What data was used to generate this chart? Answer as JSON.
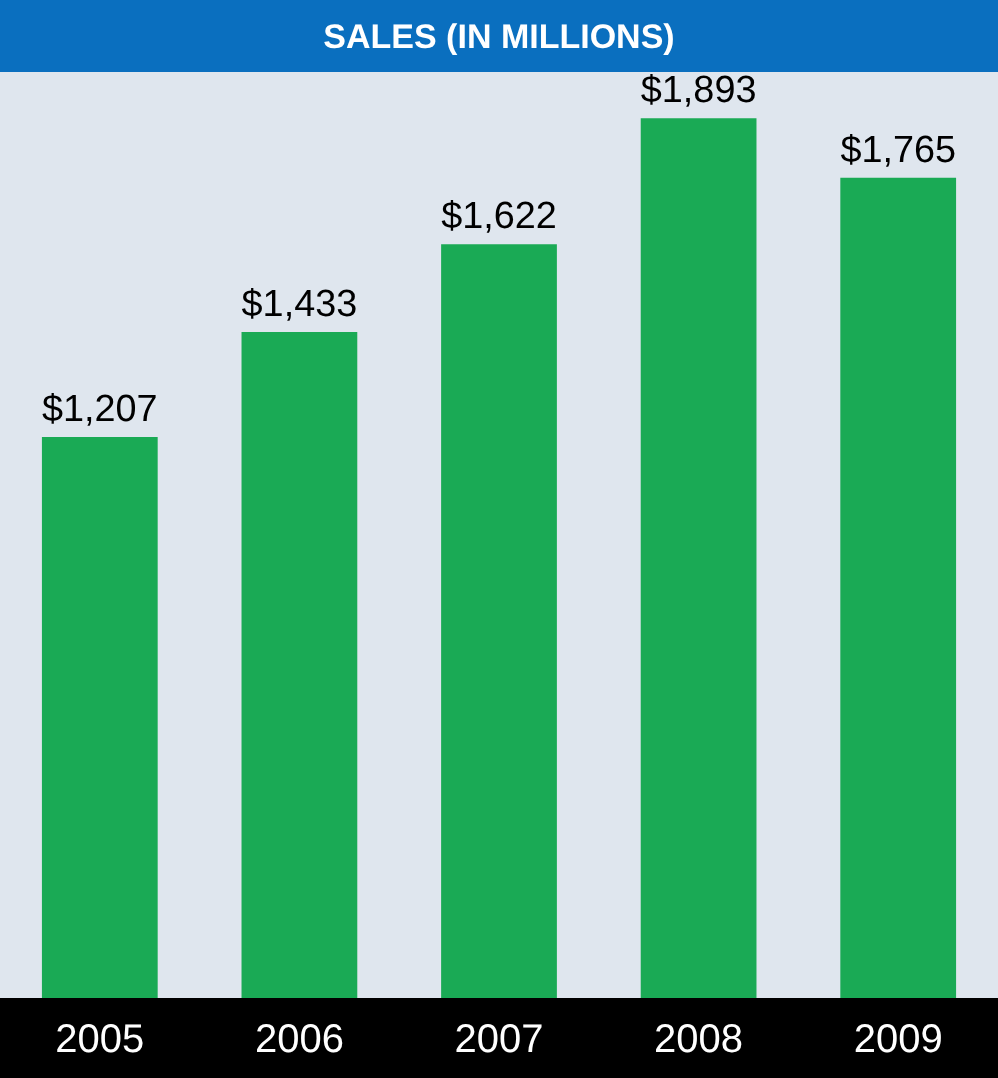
{
  "chart_data": {
    "type": "bar",
    "title": "SALES (IN MILLIONS)",
    "categories": [
      "2005",
      "2006",
      "2007",
      "2008",
      "2009"
    ],
    "values": [
      1207,
      1433,
      1622,
      1893,
      1765
    ],
    "value_labels": [
      "$1,207",
      "$1,433",
      "$1,622",
      "$1,893",
      "$1,765"
    ],
    "color": "#1aaa55",
    "grid": false,
    "legend": false
  }
}
